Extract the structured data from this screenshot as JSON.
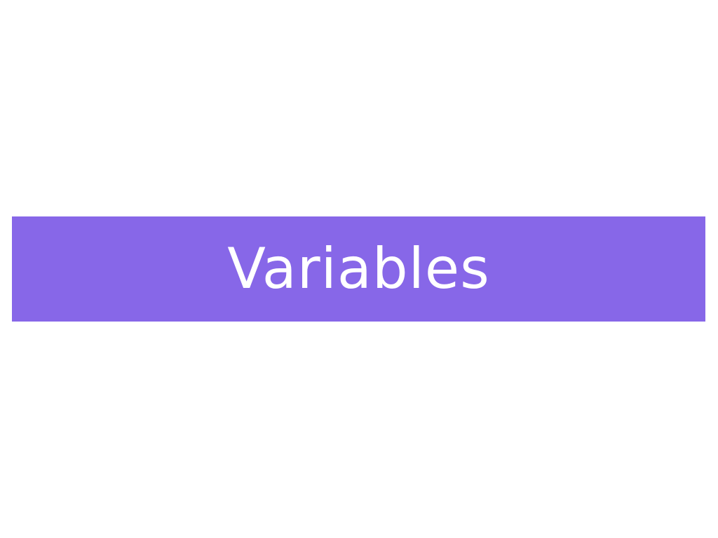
{
  "slide": {
    "title": "Variables",
    "colors": {
      "background": "#ffffff",
      "band": "#8767e8",
      "title_text": "#ffffff"
    }
  }
}
